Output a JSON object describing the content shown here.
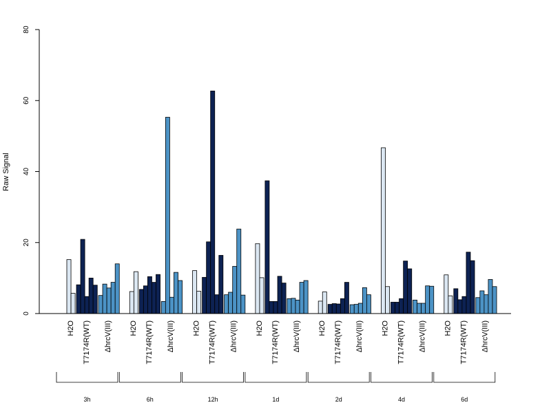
{
  "chart_data": {
    "type": "bar",
    "title": "",
    "xlabel": "",
    "ylabel": "Raw Signal",
    "ylim": [
      0,
      80
    ],
    "yticks": [
      "0",
      "20",
      "40",
      "60",
      "80"
    ],
    "timepoints": [
      "3h",
      "6h",
      "12h",
      "1d",
      "2d",
      "4d",
      "6d"
    ],
    "treatments": [
      "H2O",
      "T7174R(WT)",
      "ΔhrcV(III)"
    ],
    "colors": {
      "H2O": "#dbe7f2",
      "T7174R(WT)": "#0d2253",
      "ΔhrcV(III)": "#4c93c6"
    },
    "groups": [
      {
        "timepoint": "3h",
        "H2O": [
          15.2,
          5.7
        ],
        "T7174R(WT)": [
          8.1,
          20.9,
          4.8,
          10.0,
          8.0
        ],
        "ΔhrcV(III)": [
          5.1,
          8.3,
          7.2,
          8.8,
          14.0
        ]
      },
      {
        "timepoint": "6h",
        "H2O": [
          6.2,
          11.8
        ],
        "T7174R(WT)": [
          6.8,
          7.8,
          10.4,
          8.8,
          11.0
        ],
        "ΔhrcV(III)": [
          3.4,
          55.3,
          4.6,
          11.6,
          9.3
        ]
      },
      {
        "timepoint": "12h",
        "H2O": [
          12.1,
          6.3
        ],
        "T7174R(WT)": [
          10.2,
          20.2,
          62.7,
          5.3,
          16.4
        ],
        "ΔhrcV(III)": [
          5.3,
          6.0,
          13.3,
          23.8,
          5.2
        ]
      },
      {
        "timepoint": "1d",
        "H2O": [
          19.7,
          10.1
        ],
        "T7174R(WT)": [
          37.4,
          3.4,
          3.4,
          10.5,
          8.6
        ],
        "ΔhrcV(III)": [
          4.2,
          4.3,
          3.8,
          8.8,
          9.3
        ]
      },
      {
        "timepoint": "2d",
        "H2O": [
          3.5,
          6.1
        ],
        "T7174R(WT)": [
          2.6,
          2.8,
          2.7,
          4.2,
          8.8
        ],
        "ΔhrcV(III)": [
          2.5,
          2.6,
          2.9,
          7.3,
          5.3
        ]
      },
      {
        "timepoint": "4d",
        "H2O": [
          46.7,
          7.6
        ],
        "T7174R(WT)": [
          3.2,
          3.2,
          4.2,
          14.8,
          12.6
        ],
        "ΔhrcV(III)": [
          3.8,
          2.9,
          2.9,
          7.8,
          7.7
        ]
      },
      {
        "timepoint": "6d",
        "H2O": [
          10.9,
          5.0
        ],
        "T7174R(WT)": [
          7.0,
          3.9,
          4.8,
          17.3,
          14.9
        ],
        "ΔhrcV(III)": [
          4.5,
          6.4,
          5.3,
          9.6,
          7.6
        ]
      }
    ],
    "grid": false,
    "legend": "none"
  }
}
